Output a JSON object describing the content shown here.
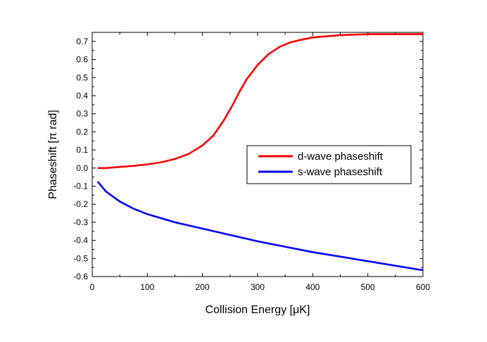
{
  "chart_data": {
    "type": "line",
    "xlabel": "Collision Energy [μK]",
    "ylabel": "Phaseshift [π rad]",
    "xlim": [
      0,
      600
    ],
    "ylim": [
      -0.6,
      0.75
    ],
    "xticks": [
      0,
      100,
      200,
      300,
      400,
      500,
      600
    ],
    "yticks": [
      -0.6,
      -0.5,
      -0.4,
      -0.3,
      -0.2,
      -0.1,
      0.0,
      0.1,
      0.2,
      0.3,
      0.4,
      0.5,
      0.6,
      0.7
    ],
    "xtick_labels": [
      "0",
      "100",
      "200",
      "300",
      "400",
      "500",
      "600"
    ],
    "ytick_labels": [
      "-0.6",
      "-0.5",
      "-0.4",
      "-0.3",
      "-0.2",
      "-0.1",
      "0.0",
      "0.1",
      "0.2",
      "0.3",
      "0.4",
      "0.5",
      "0.6",
      "0.7"
    ],
    "grid": false,
    "legend_position": "right-middle",
    "series": [
      {
        "name": "d-wave phaseshift",
        "color": "#ff0000",
        "x": [
          10,
          25,
          50,
          75,
          100,
          125,
          150,
          175,
          200,
          220,
          240,
          255,
          265,
          280,
          300,
          320,
          340,
          360,
          380,
          400,
          450,
          500,
          550,
          600
        ],
        "y": [
          0.0,
          0.0,
          0.006,
          0.012,
          0.02,
          0.032,
          0.05,
          0.078,
          0.125,
          0.18,
          0.27,
          0.35,
          0.41,
          0.49,
          0.57,
          0.63,
          0.67,
          0.695,
          0.71,
          0.722,
          0.735,
          0.74,
          0.74,
          0.74
        ]
      },
      {
        "name": "s-wave phaseshift",
        "color": "#0000ff",
        "x": [
          10,
          25,
          50,
          75,
          100,
          150,
          200,
          250,
          300,
          350,
          400,
          450,
          500,
          550,
          600
        ],
        "y": [
          -0.075,
          -0.13,
          -0.185,
          -0.225,
          -0.255,
          -0.3,
          -0.335,
          -0.37,
          -0.405,
          -0.435,
          -0.465,
          -0.49,
          -0.515,
          -0.54,
          -0.565
        ]
      }
    ]
  }
}
